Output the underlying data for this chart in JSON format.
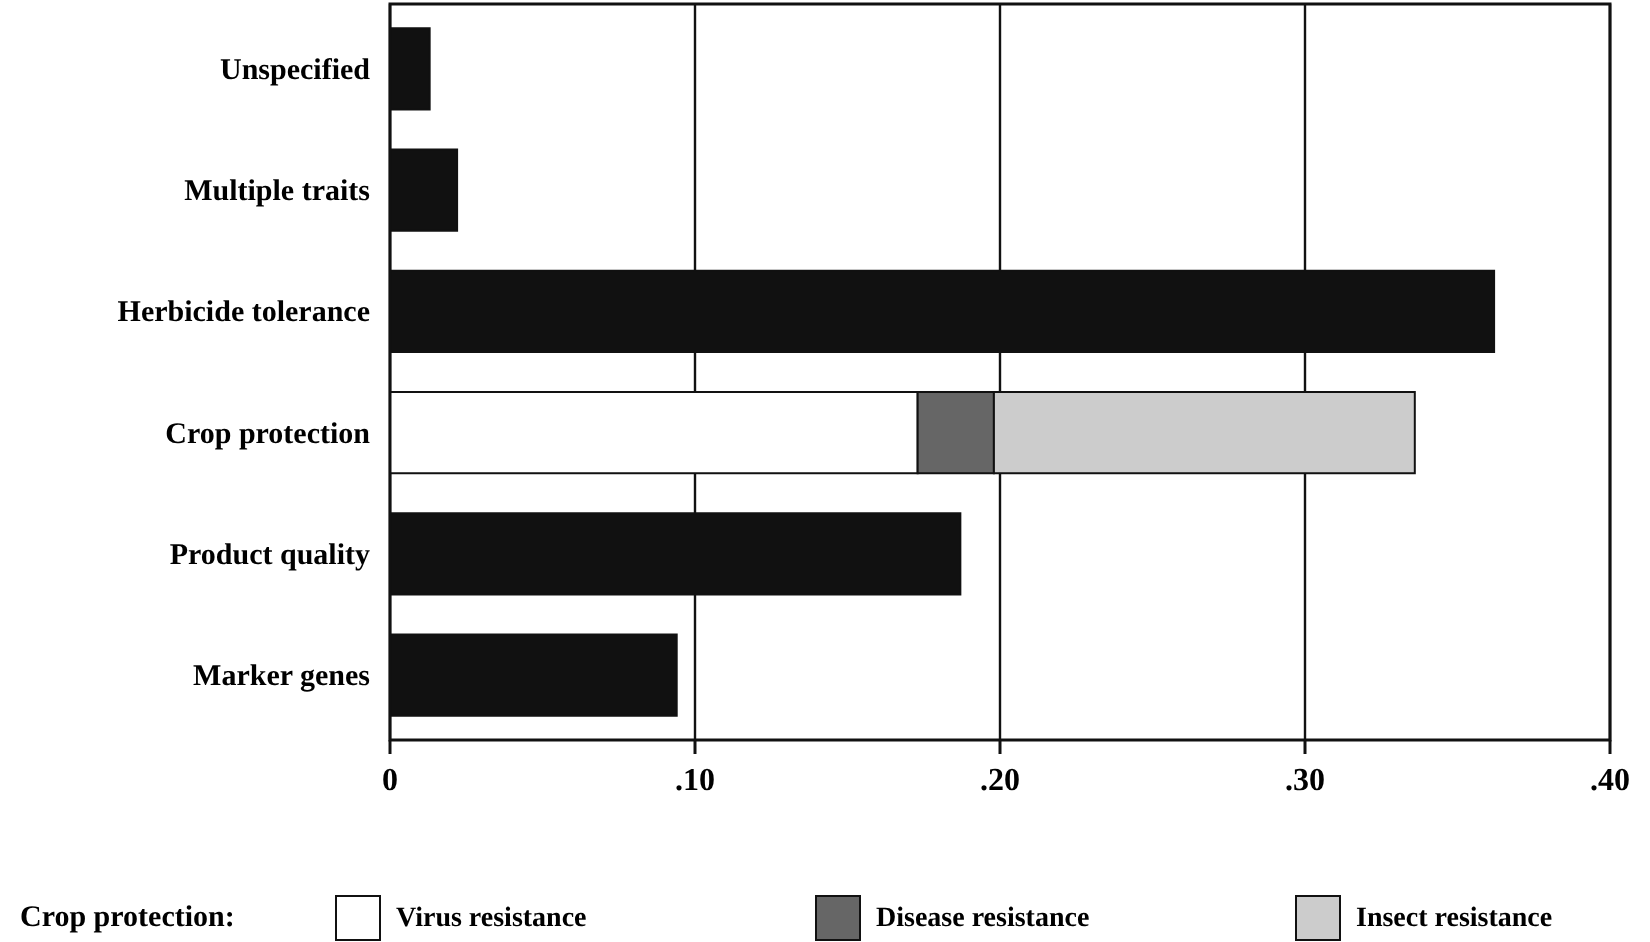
{
  "chart_data": {
    "type": "bar",
    "orientation": "horizontal",
    "stacked": true,
    "categories": [
      "Unspecified",
      "Multiple traits",
      "Herbicide tolerance",
      "Crop protection",
      "Product quality",
      "Marker genes"
    ],
    "series": [
      {
        "color": "#111111",
        "values": [
          0.013,
          0.022,
          0.362,
          null,
          0.187,
          0.094
        ]
      },
      {
        "name": "Virus resistance",
        "color": "#ffffff",
        "values": [
          null,
          null,
          null,
          0.173,
          null,
          null
        ]
      },
      {
        "name": "Disease resistance",
        "color": "#666666",
        "values": [
          null,
          null,
          null,
          0.025,
          null,
          null
        ]
      },
      {
        "name": "Insect resistance",
        "color": "#cccccc",
        "values": [
          null,
          null,
          null,
          0.138,
          null,
          null
        ]
      }
    ],
    "xlim": [
      0,
      0.4
    ],
    "xticks": [
      0,
      {
        "value": 0.1,
        "label": ".10"
      },
      {
        "value": 0.2,
        "label": ".20"
      },
      {
        "value": 0.3,
        "label": ".30"
      },
      {
        "value": 0.4,
        "label": ".40"
      }
    ],
    "grid": "x",
    "legend": "bottom",
    "legend_title": "Crop protection:"
  }
}
